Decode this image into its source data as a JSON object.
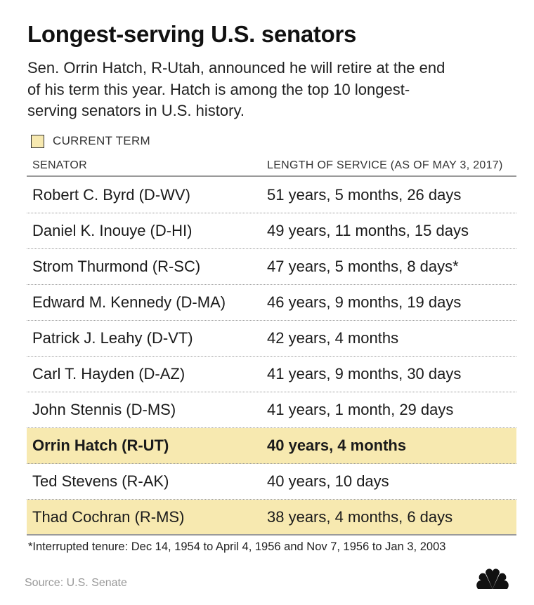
{
  "title": "Longest-serving U.S. senators",
  "subtitle": "Sen. Orrin Hatch, R-Utah, announced he will retire at the end of his term this year. Hatch is among the top 10 longest-serving senators in U.S. history.",
  "legend": {
    "label": "CURRENT TERM",
    "color": "#f7e9b0"
  },
  "colors": {
    "highlight": "#f7e9b0",
    "text": "#1a1a1a",
    "source": "#999999"
  },
  "chart_data": {
    "type": "table",
    "columns": [
      "SENATOR",
      "LENGTH OF SERVICE (AS OF MAY 3, 2017)"
    ],
    "rows": [
      {
        "senator": "Robert C. Byrd (D-WV)",
        "service": "51 years, 5 months, 26 days",
        "current_term": false,
        "bold": false
      },
      {
        "senator": "Daniel K. Inouye (D-HI)",
        "service": "49 years, 11 months, 15 days",
        "current_term": false,
        "bold": false
      },
      {
        "senator": "Strom Thurmond (R-SC)",
        "service": "47 years, 5 months, 8 days*",
        "current_term": false,
        "bold": false
      },
      {
        "senator": "Edward M. Kennedy (D-MA)",
        "service": "46 years, 9 months, 19 days",
        "current_term": false,
        "bold": false
      },
      {
        "senator": "Patrick J. Leahy (D-VT)",
        "service": "42 years, 4 months",
        "current_term": false,
        "bold": false
      },
      {
        "senator": "Carl T. Hayden (D-AZ)",
        "service": "41 years, 9 months, 30 days",
        "current_term": false,
        "bold": false
      },
      {
        "senator": "John Stennis (D-MS)",
        "service": "41 years, 1 month, 29 days",
        "current_term": false,
        "bold": false
      },
      {
        "senator": "Orrin Hatch (R-UT)",
        "service": "40 years, 4 months",
        "current_term": true,
        "bold": true
      },
      {
        "senator": "Ted Stevens (R-AK)",
        "service": "40 years, 10 days",
        "current_term": false,
        "bold": false
      },
      {
        "senator": "Thad Cochran (R-MS)",
        "service": "38 years, 4 months, 6 days",
        "current_term": true,
        "bold": false
      }
    ]
  },
  "footnote": "*Interrupted tenure: Dec 14, 1954 to April 4, 1956 and Nov 7, 1956 to Jan 3, 2003",
  "source": "Source: U.S. Senate",
  "logo_icon": "nbc-peacock-icon"
}
